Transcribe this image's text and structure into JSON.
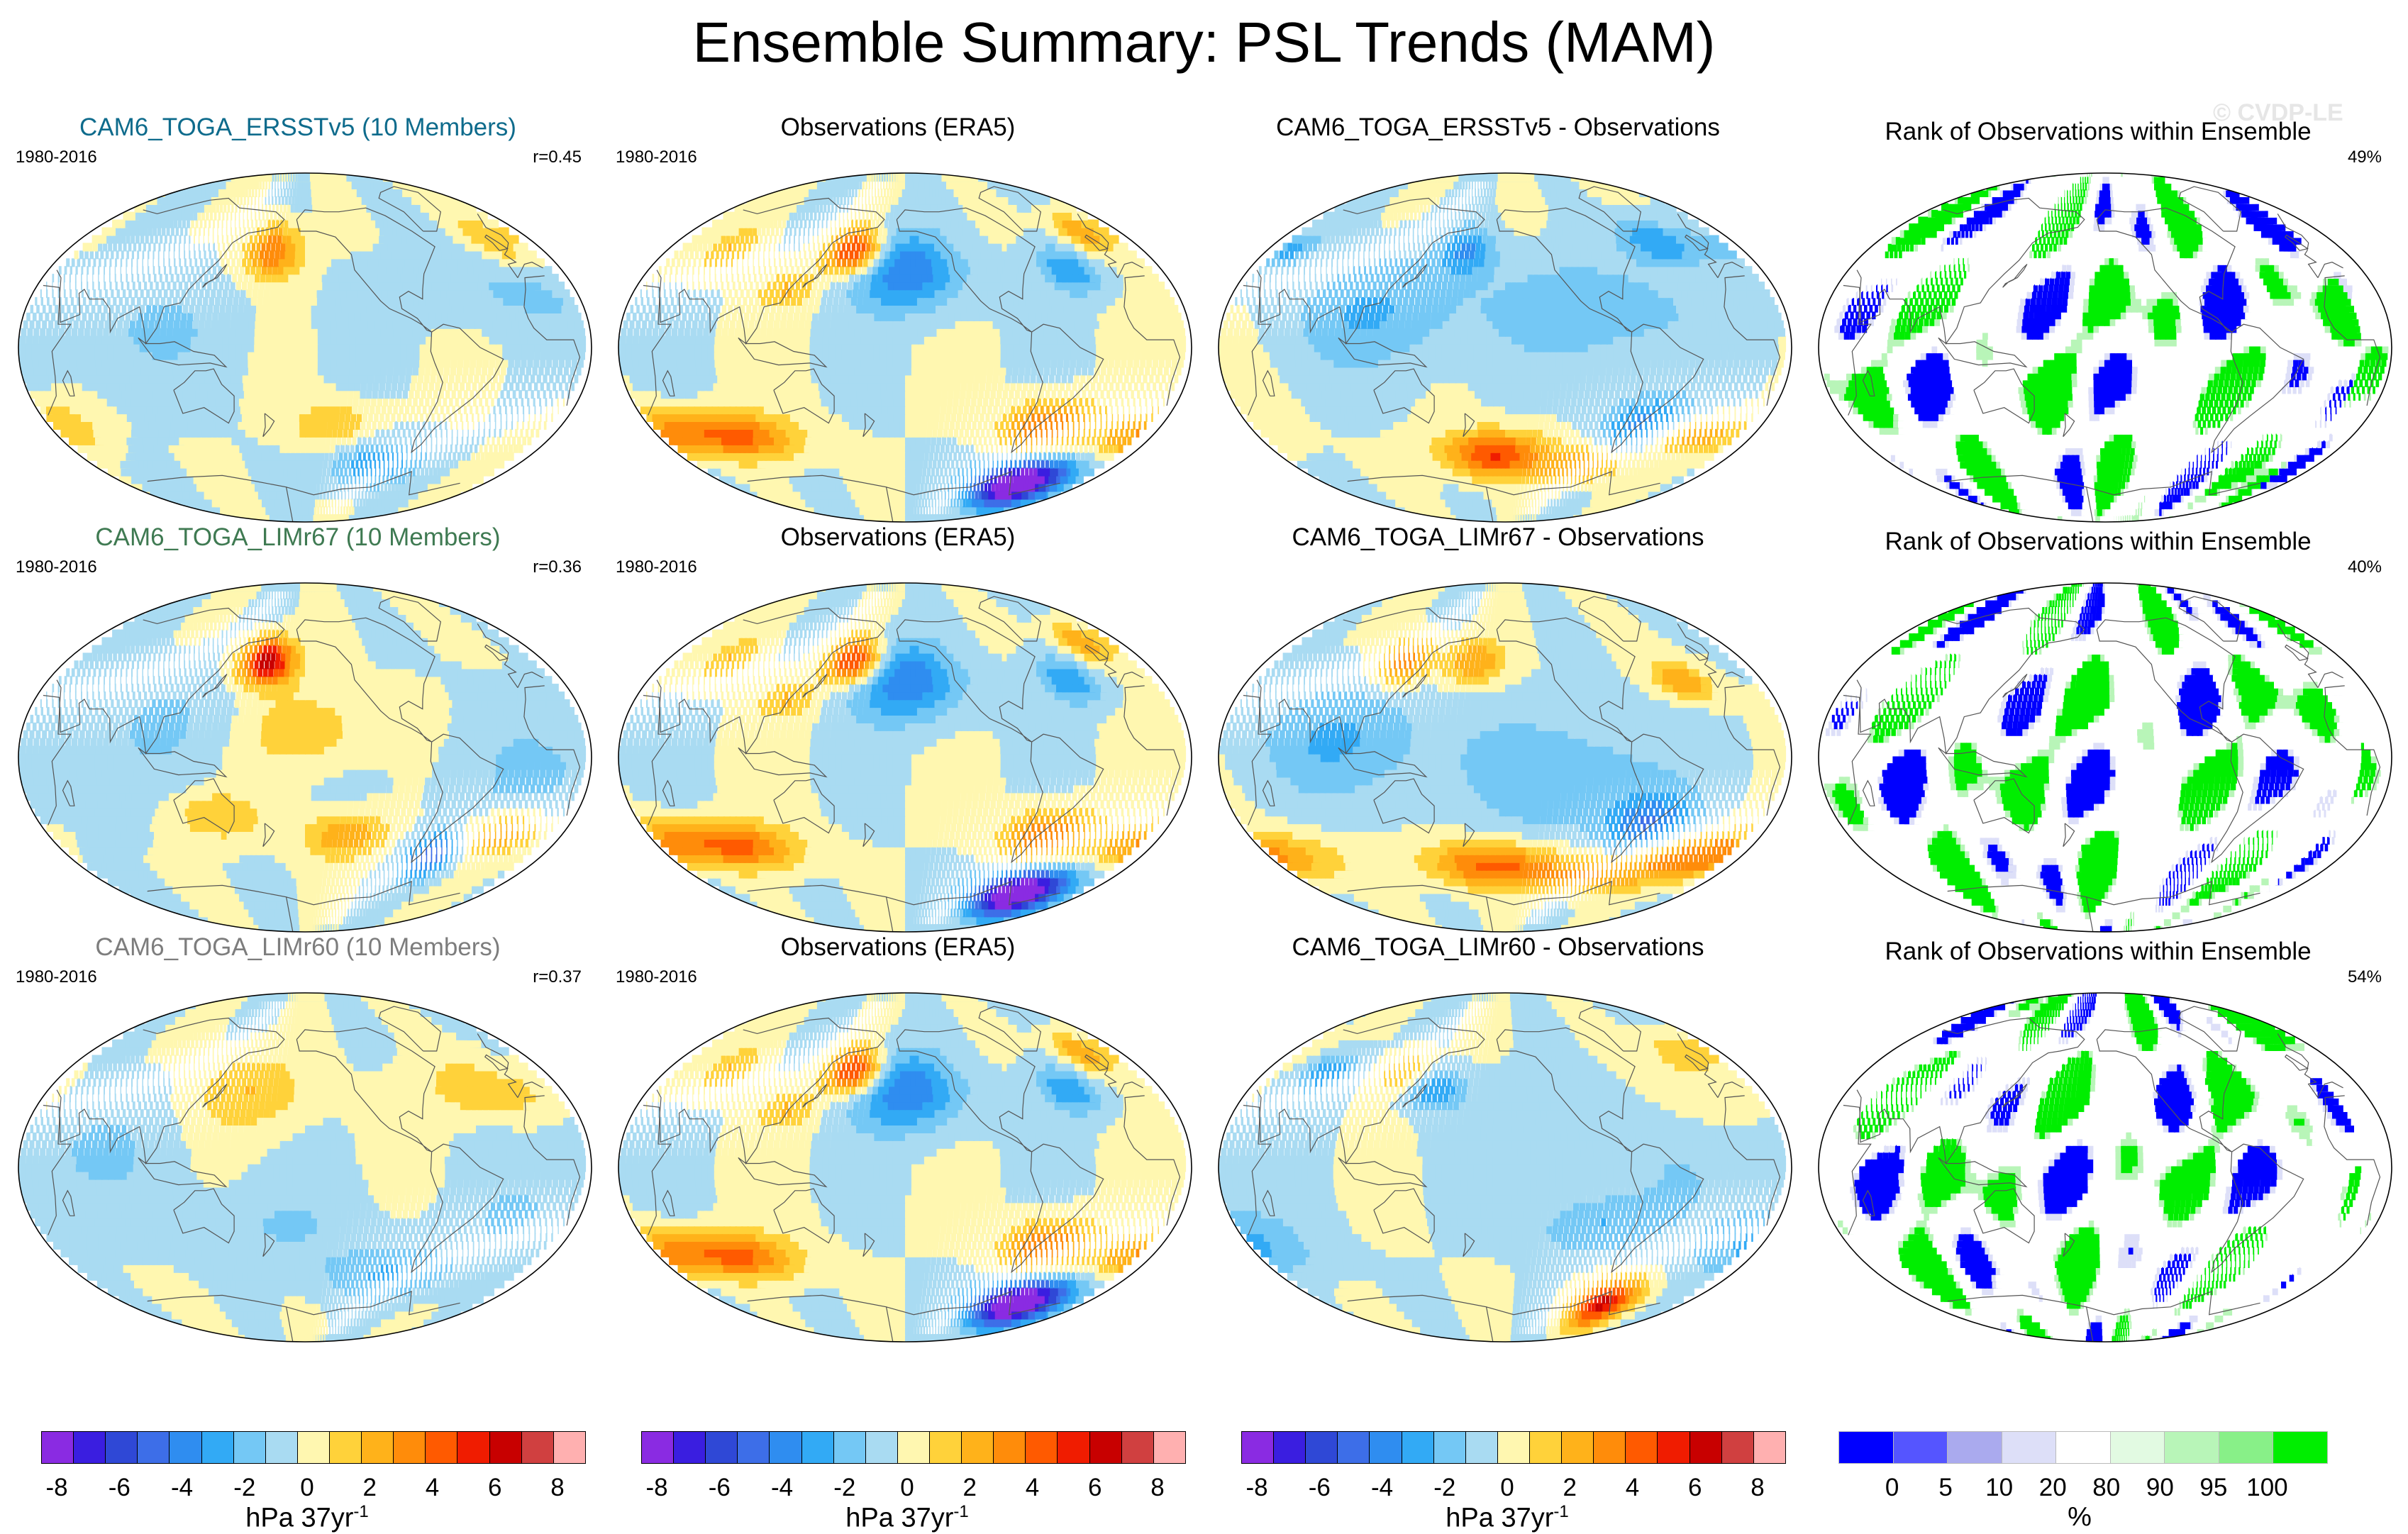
{
  "title": "Ensemble Summary: PSL Trends (MAM)",
  "watermark": "© CVDP-LE",
  "colors": {
    "title_row1": "#0e6b8c",
    "title_row2": "#3f7a52",
    "title_row3": "#7d7d7d",
    "land_outline": "#555555",
    "diverging_palette": [
      "#8a2be2",
      "#3a1ee0",
      "#2f48d6",
      "#3d6ee8",
      "#2f8df0",
      "#32aaf5",
      "#74c8f5",
      "#a9dbf2",
      "#fff7b0",
      "#ffd23a",
      "#ffb21a",
      "#ff8c0a",
      "#ff5a00",
      "#f01c00",
      "#c80000",
      "#d04040",
      "#ffb0b0"
    ],
    "rank_palette": [
      "#0000ff",
      "#5555ff",
      "#aaaaee",
      "#dddff8",
      "#ffffff",
      "#e2fae2",
      "#b8f5b8",
      "#88f088",
      "#00ee00"
    ]
  },
  "panels": [
    [
      {
        "title": "CAM6_TOGA_ERSSTv5 (10 Members)",
        "years": "1980-2016",
        "stat": "r=0.45",
        "kind": "trend",
        "seed": 11
      },
      {
        "title": "Observations (ERA5)",
        "years": "1980-2016",
        "stat": "",
        "kind": "trend",
        "seed": 2
      },
      {
        "title": "CAM6_TOGA_ERSSTv5 - Observations",
        "years": "",
        "stat": "",
        "kind": "trend",
        "seed": 31
      },
      {
        "title": "Rank of Observations within Ensemble",
        "years": "",
        "stat": "49%",
        "kind": "rank",
        "seed": 41
      }
    ],
    [
      {
        "title": "CAM6_TOGA_LIMr67 (10 Members)",
        "years": "1980-2016",
        "stat": "r=0.36",
        "kind": "trend",
        "seed": 12
      },
      {
        "title": "Observations (ERA5)",
        "years": "1980-2016",
        "stat": "",
        "kind": "trend",
        "seed": 2
      },
      {
        "title": "CAM6_TOGA_LIMr67 - Observations",
        "years": "",
        "stat": "",
        "kind": "trend",
        "seed": 32
      },
      {
        "title": "Rank of Observations within Ensemble",
        "years": "",
        "stat": "40%",
        "kind": "rank",
        "seed": 42
      }
    ],
    [
      {
        "title": "CAM6_TOGA_LIMr60 (10 Members)",
        "years": "1980-2016",
        "stat": "r=0.37",
        "kind": "trend",
        "seed": 13
      },
      {
        "title": "Observations (ERA5)",
        "years": "1980-2016",
        "stat": "",
        "kind": "trend",
        "seed": 2
      },
      {
        "title": "CAM6_TOGA_LIMr60 - Observations",
        "years": "",
        "stat": "",
        "kind": "trend",
        "seed": 33
      },
      {
        "title": "Rank of Observations within Ensemble",
        "years": "",
        "stat": "54%",
        "kind": "rank",
        "seed": 43
      }
    ]
  ],
  "chart_data": {
    "type": "heatmap",
    "projection": "Robinson (global)",
    "variable": "PSL trend",
    "season": "MAM",
    "period": "1980-2016",
    "trend_colorbar": {
      "levels": [
        -8,
        -7,
        -6,
        -5,
        -4,
        -3,
        -2,
        -1,
        0,
        1,
        2,
        3,
        4,
        5,
        6,
        7,
        8
      ],
      "tick_labels": [
        "-8",
        "-6",
        "-4",
        "-2",
        "0",
        "2",
        "4",
        "6",
        "8"
      ],
      "unit_prefix": "hPa 37yr",
      "unit_exp": "-1"
    },
    "rank_colorbar": {
      "levels": [
        0,
        5,
        10,
        20,
        80,
        90,
        95,
        100
      ],
      "tick_labels": [
        "0",
        "5",
        "10",
        "20",
        "80",
        "90",
        "95",
        "100"
      ],
      "unit": "%"
    },
    "trend_centers": {
      "2": [
        [
          160,
          50,
          6,
          22,
          12
        ],
        [
          200,
          40,
          -4,
          40,
          20
        ],
        [
          -60,
          -70,
          -6,
          40,
          12
        ],
        [
          -30,
          -70,
          -5,
          40,
          12
        ],
        [
          80,
          -45,
          4,
          40,
          12
        ],
        [
          -60,
          -40,
          4,
          30,
          14
        ],
        [
          20,
          -45,
          3,
          40,
          12
        ],
        [
          -40,
          40,
          -3,
          20,
          12
        ],
        [
          0,
          60,
          3,
          20,
          10
        ],
        [
          60,
          50,
          2,
          20,
          12
        ],
        [
          120,
          30,
          2,
          20,
          10
        ]
      ],
      "11": [
        [
          175,
          50,
          4,
          22,
          14
        ],
        [
          -100,
          -60,
          -3,
          40,
          12
        ],
        [
          30,
          -40,
          2,
          20,
          12
        ],
        [
          -140,
          -40,
          2,
          30,
          12
        ],
        [
          0,
          55,
          2,
          20,
          12
        ],
        [
          90,
          10,
          -1,
          70,
          30
        ],
        [
          -30,
          30,
          -1,
          60,
          20
        ]
      ],
      "12": [
        [
          170,
          50,
          7,
          22,
          12
        ],
        [
          200,
          15,
          2,
          40,
          20
        ],
        [
          -60,
          -50,
          -5,
          20,
          12
        ],
        [
          -20,
          -40,
          3,
          30,
          12
        ],
        [
          -130,
          -40,
          3,
          30,
          12
        ],
        [
          140,
          -30,
          2,
          30,
          12
        ],
        [
          120,
          20,
          -1,
          60,
          30
        ],
        [
          -20,
          -10,
          -1,
          60,
          30
        ]
      ],
      "13": [
        [
          160,
          40,
          2,
          40,
          20
        ],
        [
          -30,
          40,
          2,
          40,
          15
        ],
        [
          -90,
          -55,
          -2,
          60,
          14
        ],
        [
          -20,
          -25,
          -1,
          40,
          20
        ],
        [
          60,
          10,
          -1,
          60,
          30
        ],
        [
          180,
          -30,
          -1,
          60,
          20
        ]
      ],
      "31": [
        [
          -170,
          -55,
          5,
          40,
          12
        ],
        [
          170,
          50,
          -3,
          20,
          12
        ],
        [
          -90,
          -60,
          3,
          40,
          10
        ],
        [
          -20,
          -45,
          3,
          40,
          10
        ],
        [
          -60,
          -40,
          -4,
          30,
          15
        ],
        [
          -100,
          20,
          -2,
          60,
          25
        ],
        [
          120,
          20,
          -2,
          60,
          30
        ],
        [
          -30,
          55,
          -3,
          30,
          12
        ],
        [
          30,
          50,
          -2,
          20,
          10
        ]
      ],
      "32": [
        [
          -175,
          -55,
          4,
          50,
          12
        ],
        [
          175,
          50,
          3,
          25,
          12
        ],
        [
          -90,
          -60,
          3,
          60,
          10
        ],
        [
          0,
          -50,
          4,
          60,
          12
        ],
        [
          -60,
          -35,
          -4,
          30,
          15
        ],
        [
          -120,
          -10,
          -2,
          60,
          30
        ],
        [
          100,
          10,
          -2,
          60,
          30
        ],
        [
          -30,
          40,
          3,
          20,
          10
        ],
        [
          120,
          50,
          4,
          20,
          12
        ]
      ],
      "33": [
        [
          -60,
          -70,
          6,
          30,
          12
        ],
        [
          120,
          50,
          2,
          20,
          10
        ],
        [
          60,
          50,
          -3,
          20,
          10
        ],
        [
          150,
          40,
          -3,
          20,
          10
        ],
        [
          -100,
          -30,
          -2,
          40,
          15
        ],
        [
          -120,
          20,
          -1,
          60,
          25
        ],
        [
          20,
          -40,
          -2,
          40,
          15
        ],
        [
          -10,
          -10,
          -1,
          60,
          30
        ],
        [
          -30,
          40,
          1,
          30,
          15
        ],
        [
          0,
          60,
          2,
          25,
          10
        ]
      ]
    }
  }
}
